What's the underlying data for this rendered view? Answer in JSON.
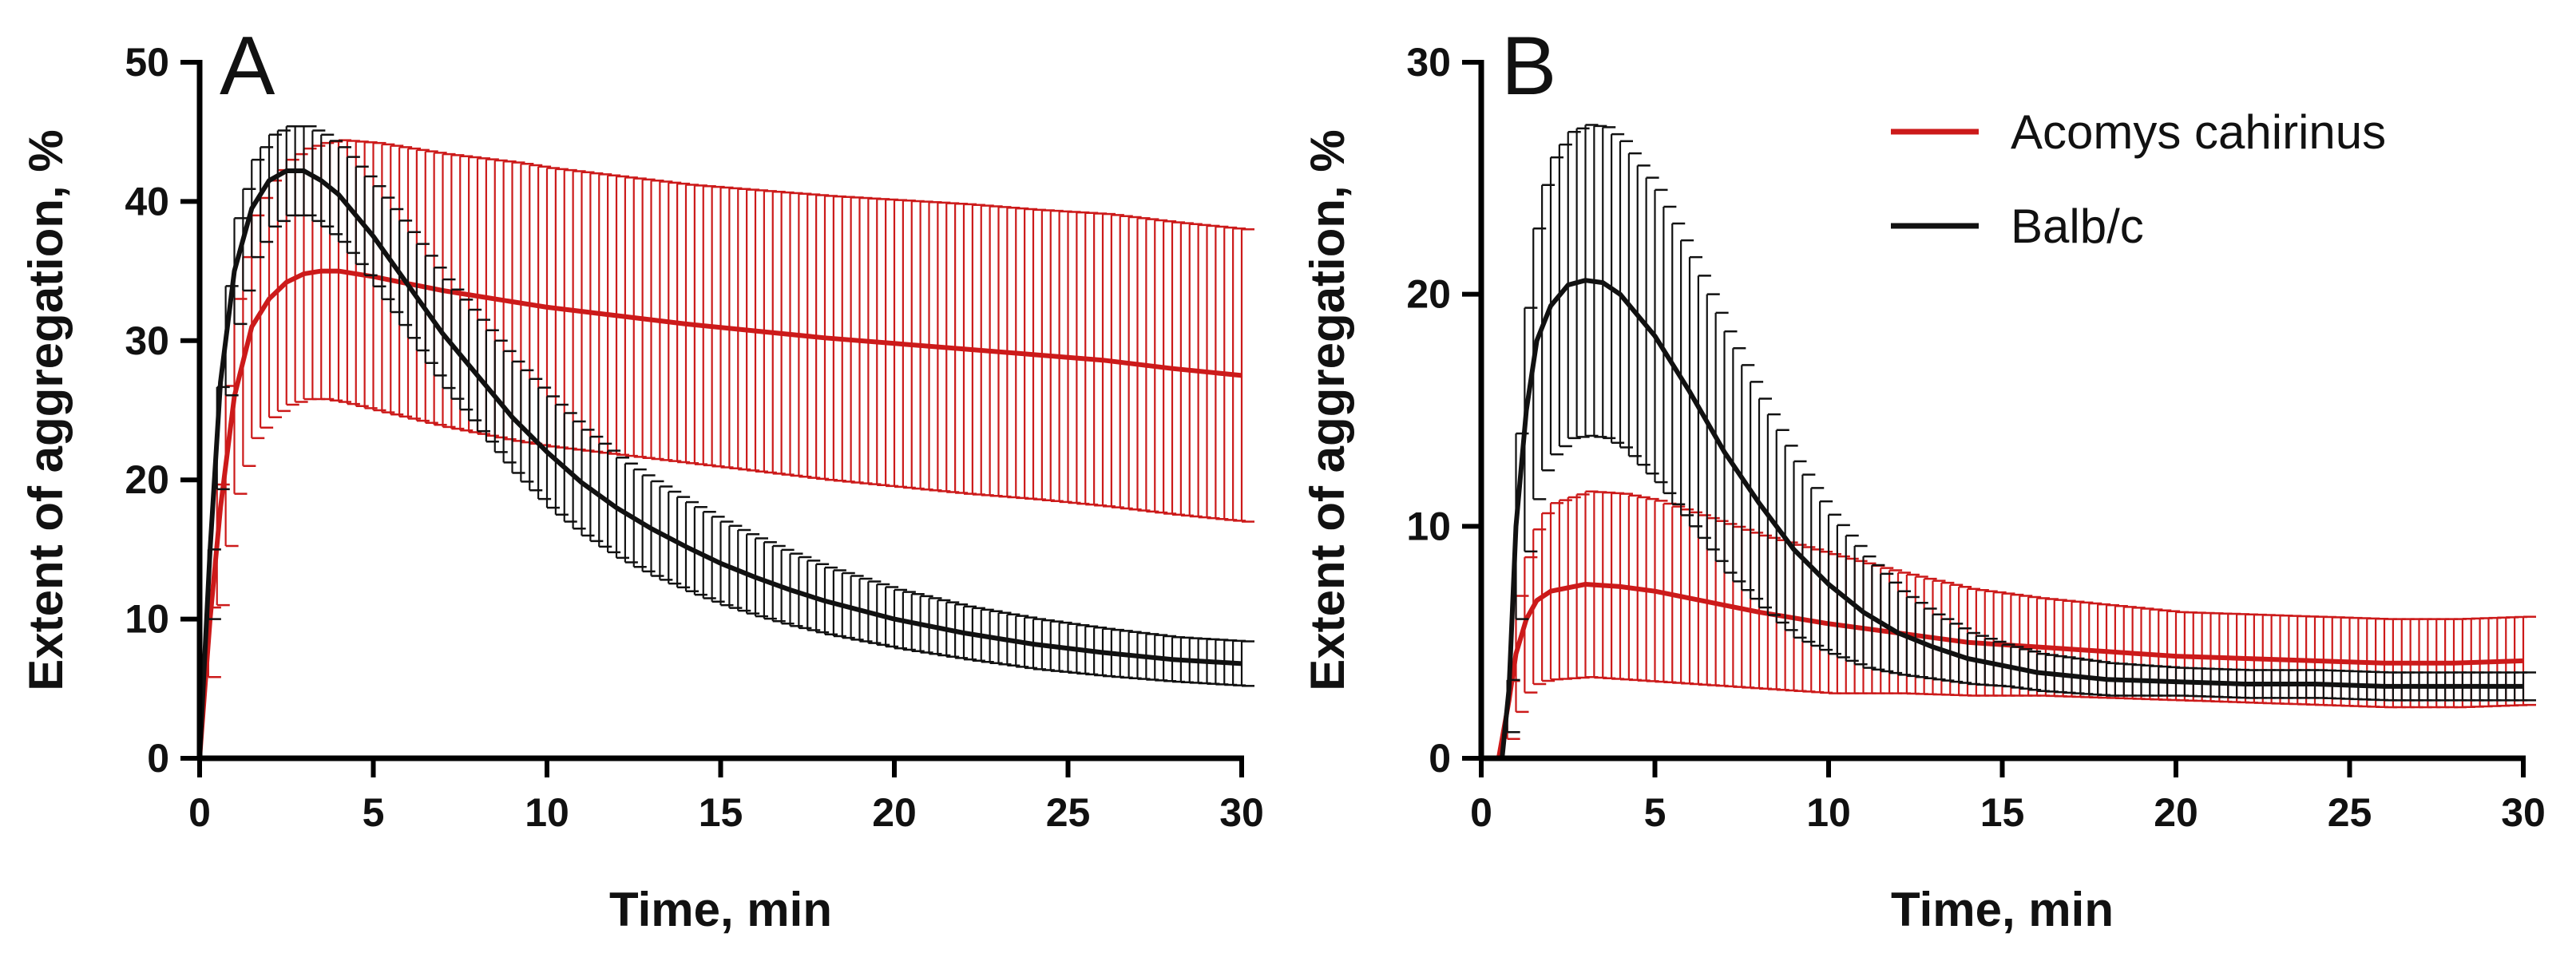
{
  "chart_data": [
    {
      "panel": "A",
      "type": "line",
      "title": "",
      "xlabel": "Time, min",
      "ylabel": "Extent of aggregation, %",
      "xlim": [
        0,
        30
      ],
      "ylim": [
        0,
        50
      ],
      "xticks": [
        0,
        5,
        10,
        15,
        20,
        25,
        30
      ],
      "yticks": [
        0,
        10,
        20,
        30,
        40,
        50
      ],
      "error_bars": "sd",
      "series": [
        {
          "name": "Acomys cahirinus",
          "color": "#cc1a1a",
          "points": [
            [
              0,
              0
            ],
            [
              0.3,
              10
            ],
            [
              0.6,
              18
            ],
            [
              1,
              26
            ],
            [
              1.5,
              31
            ],
            [
              2,
              33
            ],
            [
              2.5,
              34.2
            ],
            [
              3,
              34.8
            ],
            [
              3.5,
              35
            ],
            [
              4,
              35
            ],
            [
              5,
              34.6
            ],
            [
              6,
              34.1
            ],
            [
              7,
              33.6
            ],
            [
              8,
              33.2
            ],
            [
              9,
              32.8
            ],
            [
              10,
              32.4
            ],
            [
              12,
              31.8
            ],
            [
              14,
              31.2
            ],
            [
              16,
              30.7
            ],
            [
              18,
              30.2
            ],
            [
              20,
              29.8
            ],
            [
              22,
              29.4
            ],
            [
              24,
              29
            ],
            [
              26,
              28.6
            ],
            [
              28,
              28
            ],
            [
              30,
              27.5
            ]
          ],
          "error": [
            [
              0,
              0
            ],
            [
              0.3,
              3
            ],
            [
              0.6,
              5
            ],
            [
              1,
              7
            ],
            [
              1.5,
              8
            ],
            [
              2,
              8.5
            ],
            [
              2.5,
              8.8
            ],
            [
              3,
              9
            ],
            [
              3.5,
              9.2
            ],
            [
              4,
              9.4
            ],
            [
              5,
              9.6
            ],
            [
              6,
              9.7
            ],
            [
              7,
              9.8
            ],
            [
              8,
              9.9
            ],
            [
              9,
              10
            ],
            [
              10,
              10
            ],
            [
              12,
              10
            ],
            [
              14,
              10
            ],
            [
              16,
              10.1
            ],
            [
              18,
              10.2
            ],
            [
              20,
              10.3
            ],
            [
              22,
              10.4
            ],
            [
              24,
              10.4
            ],
            [
              26,
              10.5
            ],
            [
              28,
              10.5
            ],
            [
              30,
              10.5
            ]
          ]
        },
        {
          "name": "Balb/c",
          "color": "#111111",
          "points": [
            [
              0,
              0
            ],
            [
              0.3,
              15
            ],
            [
              0.6,
              27
            ],
            [
              1,
              35
            ],
            [
              1.5,
              39.5
            ],
            [
              2,
              41.5
            ],
            [
              2.5,
              42.2
            ],
            [
              3,
              42.2
            ],
            [
              3.5,
              41.5
            ],
            [
              4,
              40.5
            ],
            [
              5,
              37.5
            ],
            [
              6,
              34
            ],
            [
              7,
              30.5
            ],
            [
              8,
              27.5
            ],
            [
              9,
              24.5
            ],
            [
              10,
              22
            ],
            [
              11,
              19.8
            ],
            [
              12,
              18
            ],
            [
              13,
              16.5
            ],
            [
              14,
              15.2
            ],
            [
              15,
              14
            ],
            [
              16,
              13
            ],
            [
              17,
              12.1
            ],
            [
              18,
              11.3
            ],
            [
              20,
              10
            ],
            [
              22,
              9
            ],
            [
              24,
              8.2
            ],
            [
              26,
              7.6
            ],
            [
              28,
              7.1
            ],
            [
              30,
              6.8
            ]
          ],
          "error": [
            [
              0,
              0
            ],
            [
              0.3,
              3
            ],
            [
              0.6,
              4
            ],
            [
              1,
              3.8
            ],
            [
              1.5,
              3.5
            ],
            [
              2,
              3.3
            ],
            [
              2.5,
              3.2
            ],
            [
              3,
              3.2
            ],
            [
              3.5,
              3.3
            ],
            [
              4,
              3.4
            ],
            [
              5,
              3.6
            ],
            [
              6,
              3.8
            ],
            [
              7,
              3.9
            ],
            [
              8,
              4
            ],
            [
              9,
              4
            ],
            [
              10,
              4
            ],
            [
              11,
              3.8
            ],
            [
              12,
              3.6
            ],
            [
              13,
              3.4
            ],
            [
              14,
              3.2
            ],
            [
              15,
              3
            ],
            [
              16,
              2.8
            ],
            [
              17,
              2.6
            ],
            [
              18,
              2.4
            ],
            [
              20,
              2.1
            ],
            [
              22,
              1.9
            ],
            [
              24,
              1.8
            ],
            [
              26,
              1.7
            ],
            [
              28,
              1.6
            ],
            [
              30,
              1.6
            ]
          ]
        }
      ]
    },
    {
      "panel": "B",
      "type": "line",
      "title": "",
      "xlabel": "Time, min",
      "ylabel": "Extent of aggregation, %",
      "xlim": [
        0,
        30
      ],
      "ylim": [
        0,
        30
      ],
      "xticks": [
        0,
        5,
        10,
        15,
        20,
        25,
        30
      ],
      "yticks": [
        0,
        10,
        20,
        30
      ],
      "error_bars": "sd",
      "legend_position": "top-right",
      "series": [
        {
          "name": "Acomys cahirinus",
          "color": "#cc1a1a",
          "points": [
            [
              0,
              0
            ],
            [
              0.5,
              0
            ],
            [
              0.8,
              2.5
            ],
            [
              1,
              4.5
            ],
            [
              1.3,
              6
            ],
            [
              1.6,
              6.8
            ],
            [
              2,
              7.2
            ],
            [
              3,
              7.5
            ],
            [
              4,
              7.4
            ],
            [
              5,
              7.2
            ],
            [
              6,
              6.9
            ],
            [
              7,
              6.6
            ],
            [
              8,
              6.3
            ],
            [
              10,
              5.8
            ],
            [
              12,
              5.4
            ],
            [
              14,
              5
            ],
            [
              16,
              4.8
            ],
            [
              18,
              4.6
            ],
            [
              20,
              4.4
            ],
            [
              22,
              4.3
            ],
            [
              24,
              4.2
            ],
            [
              26,
              4.1
            ],
            [
              28,
              4.1
            ],
            [
              30,
              4.2
            ]
          ],
          "error": [
            [
              0,
              0
            ],
            [
              0.5,
              0
            ],
            [
              0.8,
              1.5
            ],
            [
              1,
              2.5
            ],
            [
              1.3,
              3
            ],
            [
              1.6,
              3.5
            ],
            [
              2,
              3.8
            ],
            [
              3,
              4
            ],
            [
              4,
              4
            ],
            [
              5,
              3.9
            ],
            [
              6,
              3.7
            ],
            [
              7,
              3.5
            ],
            [
              8,
              3.3
            ],
            [
              10,
              3
            ],
            [
              12,
              2.6
            ],
            [
              14,
              2.3
            ],
            [
              16,
              2.1
            ],
            [
              18,
              2
            ],
            [
              20,
              1.9
            ],
            [
              22,
              1.9
            ],
            [
              24,
              1.9
            ],
            [
              26,
              1.9
            ],
            [
              28,
              1.9
            ],
            [
              30,
              1.9
            ]
          ]
        },
        {
          "name": "Balb/c",
          "color": "#111111",
          "points": [
            [
              0,
              0
            ],
            [
              0.6,
              0
            ],
            [
              0.8,
              3
            ],
            [
              1,
              10
            ],
            [
              1.3,
              15
            ],
            [
              1.6,
              18
            ],
            [
              2,
              19.5
            ],
            [
              2.5,
              20.4
            ],
            [
              3,
              20.6
            ],
            [
              3.5,
              20.5
            ],
            [
              4,
              20
            ],
            [
              5,
              18.2
            ],
            [
              6,
              15.8
            ],
            [
              7,
              13.2
            ],
            [
              8,
              11
            ],
            [
              9,
              9
            ],
            [
              10,
              7.5
            ],
            [
              11,
              6.3
            ],
            [
              12,
              5.4
            ],
            [
              13,
              4.8
            ],
            [
              14,
              4.3
            ],
            [
              15,
              4
            ],
            [
              16,
              3.7
            ],
            [
              18,
              3.4
            ],
            [
              20,
              3.3
            ],
            [
              22,
              3.2
            ],
            [
              24,
              3.2
            ],
            [
              26,
              3.1
            ],
            [
              28,
              3.1
            ],
            [
              30,
              3.1
            ]
          ],
          "error": [
            [
              0,
              0
            ],
            [
              0.6,
              0
            ],
            [
              0.8,
              1.5
            ],
            [
              1,
              4
            ],
            [
              1.3,
              5.5
            ],
            [
              1.6,
              6
            ],
            [
              2,
              6.4
            ],
            [
              2.5,
              6.6
            ],
            [
              3,
              6.7
            ],
            [
              3.5,
              6.7
            ],
            [
              4,
              6.6
            ],
            [
              5,
              6.3
            ],
            [
              6,
              5.8
            ],
            [
              7,
              5.2
            ],
            [
              8,
              4.5
            ],
            [
              9,
              3.8
            ],
            [
              10,
              3
            ],
            [
              11,
              2.4
            ],
            [
              12,
              1.8
            ],
            [
              13,
              1.4
            ],
            [
              14,
              1.1
            ],
            [
              15,
              0.9
            ],
            [
              16,
              0.8
            ],
            [
              18,
              0.7
            ],
            [
              20,
              0.6
            ],
            [
              22,
              0.6
            ],
            [
              24,
              0.6
            ],
            [
              26,
              0.6
            ],
            [
              28,
              0.6
            ],
            [
              30,
              0.6
            ]
          ]
        }
      ]
    }
  ]
}
